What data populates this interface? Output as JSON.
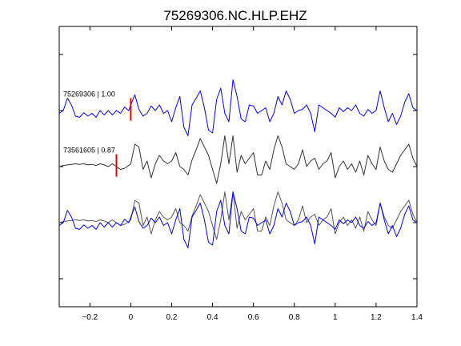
{
  "chart_data": {
    "type": "line",
    "title": "75269306.NC.HLP.EHZ",
    "xlabel": "",
    "ylabel": "",
    "xlim": [
      -0.35,
      1.4
    ],
    "x_ticks": [
      -0.2,
      0,
      0.2,
      0.4,
      0.6,
      0.8,
      1,
      1.2,
      1.4
    ],
    "x_tick_labels": [
      "−0.2",
      "0",
      "0.2",
      "0.4",
      "0.6",
      "0.8",
      "1",
      "1.2",
      "1.4"
    ],
    "ylim": [
      0,
      5
    ],
    "y_ticks": [
      0.5,
      1.5,
      2.5,
      3.5,
      4.5
    ],
    "y_tick_labels": [
      "",
      "",
      "",
      "",
      ""
    ],
    "grid": false,
    "panels": [
      {
        "label": "75269306 | 1.00",
        "baseline": 3.5,
        "pick_x": 0.0,
        "color": "#0000ff",
        "x": [
          -0.35,
          -0.33,
          -0.31,
          -0.29,
          -0.27,
          -0.25,
          -0.23,
          -0.21,
          -0.19,
          -0.17,
          -0.15,
          -0.13,
          -0.11,
          -0.09,
          -0.07,
          -0.05,
          -0.03,
          -0.01,
          0.0,
          0.02,
          0.04,
          0.06,
          0.08,
          0.1,
          0.12,
          0.14,
          0.16,
          0.18,
          0.2,
          0.22,
          0.24,
          0.26,
          0.28,
          0.3,
          0.32,
          0.34,
          0.36,
          0.38,
          0.4,
          0.42,
          0.44,
          0.46,
          0.48,
          0.5,
          0.52,
          0.54,
          0.56,
          0.58,
          0.6,
          0.62,
          0.64,
          0.66,
          0.68,
          0.7,
          0.72,
          0.74,
          0.76,
          0.78,
          0.8,
          0.82,
          0.84,
          0.86,
          0.88,
          0.9,
          0.92,
          0.94,
          0.96,
          0.98,
          1.0,
          1.02,
          1.04,
          1.06,
          1.08,
          1.1,
          1.12,
          1.14,
          1.16,
          1.18,
          1.2,
          1.22,
          1.24,
          1.26,
          1.28,
          1.3,
          1.32,
          1.34,
          1.36,
          1.38,
          1.4
        ],
        "y": [
          3.45,
          3.5,
          3.72,
          3.6,
          3.4,
          3.38,
          3.46,
          3.4,
          3.45,
          3.38,
          3.5,
          3.42,
          3.5,
          3.42,
          3.5,
          3.45,
          3.56,
          3.5,
          3.6,
          3.78,
          3.52,
          3.4,
          3.45,
          3.58,
          3.5,
          3.6,
          3.45,
          3.5,
          3.3,
          3.55,
          3.75,
          3.2,
          3.05,
          3.6,
          3.72,
          3.85,
          3.55,
          3.15,
          3.1,
          3.7,
          3.9,
          3.45,
          3.3,
          4.05,
          3.75,
          3.35,
          3.3,
          3.6,
          3.58,
          3.45,
          3.5,
          3.55,
          3.3,
          3.45,
          3.75,
          3.6,
          3.85,
          3.7,
          3.45,
          3.5,
          3.52,
          3.6,
          3.45,
          3.12,
          3.6,
          3.55,
          3.5,
          3.45,
          3.38,
          3.55,
          3.48,
          3.55,
          3.5,
          3.6,
          3.45,
          3.4,
          3.52,
          3.45,
          3.5,
          3.85,
          3.55,
          3.3,
          3.45,
          3.25,
          3.4,
          3.65,
          3.8,
          3.55,
          3.5
        ]
      },
      {
        "label": "73561605 | 0.87",
        "baseline": 2.5,
        "pick_x": -0.07,
        "color": "#333333",
        "x": [
          -0.35,
          -0.33,
          -0.31,
          -0.29,
          -0.27,
          -0.25,
          -0.23,
          -0.21,
          -0.19,
          -0.17,
          -0.15,
          -0.13,
          -0.11,
          -0.09,
          -0.07,
          -0.05,
          -0.03,
          -0.01,
          0.0,
          0.02,
          0.04,
          0.06,
          0.08,
          0.1,
          0.12,
          0.14,
          0.16,
          0.18,
          0.2,
          0.22,
          0.24,
          0.26,
          0.28,
          0.3,
          0.32,
          0.34,
          0.36,
          0.38,
          0.4,
          0.42,
          0.44,
          0.46,
          0.48,
          0.5,
          0.52,
          0.54,
          0.56,
          0.58,
          0.6,
          0.62,
          0.64,
          0.66,
          0.68,
          0.7,
          0.72,
          0.74,
          0.76,
          0.78,
          0.8,
          0.82,
          0.84,
          0.86,
          0.88,
          0.9,
          0.92,
          0.94,
          0.96,
          0.98,
          1.0,
          1.02,
          1.04,
          1.06,
          1.08,
          1.1,
          1.12,
          1.14,
          1.16,
          1.18,
          1.2,
          1.22,
          1.24,
          1.26,
          1.28,
          1.3,
          1.32,
          1.34,
          1.36,
          1.38,
          1.4
        ],
        "y": [
          2.5,
          2.52,
          2.53,
          2.54,
          2.55,
          2.54,
          2.55,
          2.53,
          2.54,
          2.52,
          2.55,
          2.53,
          2.5,
          2.55,
          2.5,
          2.45,
          2.47,
          2.52,
          2.55,
          2.9,
          2.85,
          2.45,
          2.6,
          2.3,
          2.55,
          2.7,
          2.6,
          2.55,
          2.6,
          2.75,
          2.5,
          2.45,
          2.35,
          2.62,
          2.8,
          3.0,
          2.85,
          2.7,
          2.45,
          2.2,
          2.55,
          3.05,
          2.55,
          3.05,
          2.4,
          2.7,
          2.55,
          2.65,
          2.75,
          2.35,
          2.35,
          2.6,
          2.45,
          2.8,
          3.05,
          2.85,
          2.55,
          2.5,
          2.45,
          2.55,
          2.8,
          2.5,
          2.6,
          2.65,
          2.45,
          2.55,
          2.6,
          2.75,
          2.3,
          2.5,
          2.6,
          2.45,
          2.55,
          2.4,
          2.6,
          2.35,
          2.7,
          2.55,
          2.45,
          2.85,
          2.6,
          2.45,
          2.4,
          2.55,
          2.7,
          2.8,
          2.9,
          2.65,
          2.5
        ]
      },
      {
        "label": "",
        "baseline": 1.5,
        "pick_x": null,
        "color": "#0000ff",
        "x": [
          -0.35,
          -0.33,
          -0.31,
          -0.29,
          -0.27,
          -0.25,
          -0.23,
          -0.21,
          -0.19,
          -0.17,
          -0.15,
          -0.13,
          -0.11,
          -0.09,
          -0.07,
          -0.05,
          -0.03,
          -0.01,
          0.0,
          0.02,
          0.04,
          0.06,
          0.08,
          0.1,
          0.12,
          0.14,
          0.16,
          0.18,
          0.2,
          0.22,
          0.24,
          0.26,
          0.28,
          0.3,
          0.32,
          0.34,
          0.36,
          0.38,
          0.4,
          0.42,
          0.44,
          0.46,
          0.48,
          0.5,
          0.52,
          0.54,
          0.56,
          0.58,
          0.6,
          0.62,
          0.64,
          0.66,
          0.68,
          0.7,
          0.72,
          0.74,
          0.76,
          0.78,
          0.8,
          0.82,
          0.84,
          0.86,
          0.88,
          0.9,
          0.92,
          0.94,
          0.96,
          0.98,
          1.0,
          1.02,
          1.04,
          1.06,
          1.08,
          1.1,
          1.12,
          1.14,
          1.16,
          1.18,
          1.2,
          1.22,
          1.24,
          1.26,
          1.28,
          1.3,
          1.32,
          1.34,
          1.36,
          1.38,
          1.4
        ],
        "y": [
          1.45,
          1.5,
          1.72,
          1.6,
          1.4,
          1.38,
          1.46,
          1.4,
          1.45,
          1.38,
          1.5,
          1.42,
          1.5,
          1.42,
          1.5,
          1.45,
          1.56,
          1.5,
          1.6,
          1.78,
          1.52,
          1.4,
          1.45,
          1.58,
          1.5,
          1.6,
          1.45,
          1.5,
          1.3,
          1.55,
          1.75,
          1.2,
          1.05,
          1.6,
          1.72,
          1.85,
          1.55,
          1.15,
          1.1,
          1.7,
          1.9,
          1.45,
          1.3,
          2.05,
          1.75,
          1.35,
          1.3,
          1.6,
          1.58,
          1.45,
          1.5,
          1.55,
          1.3,
          1.45,
          1.75,
          1.6,
          1.85,
          1.7,
          1.45,
          1.5,
          1.52,
          1.6,
          1.45,
          1.12,
          1.6,
          1.55,
          1.5,
          1.45,
          1.38,
          1.55,
          1.48,
          1.55,
          1.5,
          1.6,
          1.45,
          1.4,
          1.52,
          1.45,
          1.5,
          1.85,
          1.55,
          1.3,
          1.45,
          1.25,
          1.4,
          1.65,
          1.8,
          1.55,
          1.5
        ]
      },
      {
        "label": "",
        "baseline": 1.5,
        "pick_x": null,
        "color": "#555555",
        "x": [
          -0.35,
          -0.33,
          -0.31,
          -0.29,
          -0.27,
          -0.25,
          -0.23,
          -0.21,
          -0.19,
          -0.17,
          -0.15,
          -0.13,
          -0.11,
          -0.09,
          -0.07,
          -0.05,
          -0.03,
          -0.01,
          0.0,
          0.02,
          0.04,
          0.06,
          0.08,
          0.1,
          0.12,
          0.14,
          0.16,
          0.18,
          0.2,
          0.22,
          0.24,
          0.26,
          0.28,
          0.3,
          0.32,
          0.34,
          0.36,
          0.38,
          0.4,
          0.42,
          0.44,
          0.46,
          0.48,
          0.5,
          0.52,
          0.54,
          0.56,
          0.58,
          0.6,
          0.62,
          0.64,
          0.66,
          0.68,
          0.7,
          0.72,
          0.74,
          0.76,
          0.78,
          0.8,
          0.82,
          0.84,
          0.86,
          0.88,
          0.9,
          0.92,
          0.94,
          0.96,
          0.98,
          1.0,
          1.02,
          1.04,
          1.06,
          1.08,
          1.1,
          1.12,
          1.14,
          1.16,
          1.18,
          1.2,
          1.22,
          1.24,
          1.26,
          1.28,
          1.3,
          1.32,
          1.34,
          1.36,
          1.38,
          1.4
        ],
        "y": [
          1.5,
          1.52,
          1.53,
          1.54,
          1.55,
          1.54,
          1.55,
          1.53,
          1.54,
          1.52,
          1.55,
          1.53,
          1.5,
          1.55,
          1.5,
          1.45,
          1.47,
          1.52,
          1.55,
          1.9,
          1.85,
          1.45,
          1.6,
          1.3,
          1.55,
          1.7,
          1.6,
          1.55,
          1.6,
          1.75,
          1.5,
          1.45,
          1.35,
          1.62,
          1.8,
          2.0,
          1.85,
          1.7,
          1.45,
          1.2,
          1.55,
          2.05,
          1.55,
          2.05,
          1.4,
          1.7,
          1.55,
          1.65,
          1.75,
          1.35,
          1.35,
          1.6,
          1.45,
          1.8,
          2.05,
          1.85,
          1.55,
          1.5,
          1.45,
          1.55,
          1.8,
          1.5,
          1.6,
          1.65,
          1.45,
          1.55,
          1.6,
          1.75,
          1.3,
          1.5,
          1.6,
          1.45,
          1.55,
          1.4,
          1.6,
          1.35,
          1.7,
          1.55,
          1.45,
          1.85,
          1.6,
          1.45,
          1.4,
          1.55,
          1.7,
          1.8,
          1.9,
          1.65,
          1.5
        ]
      }
    ]
  }
}
